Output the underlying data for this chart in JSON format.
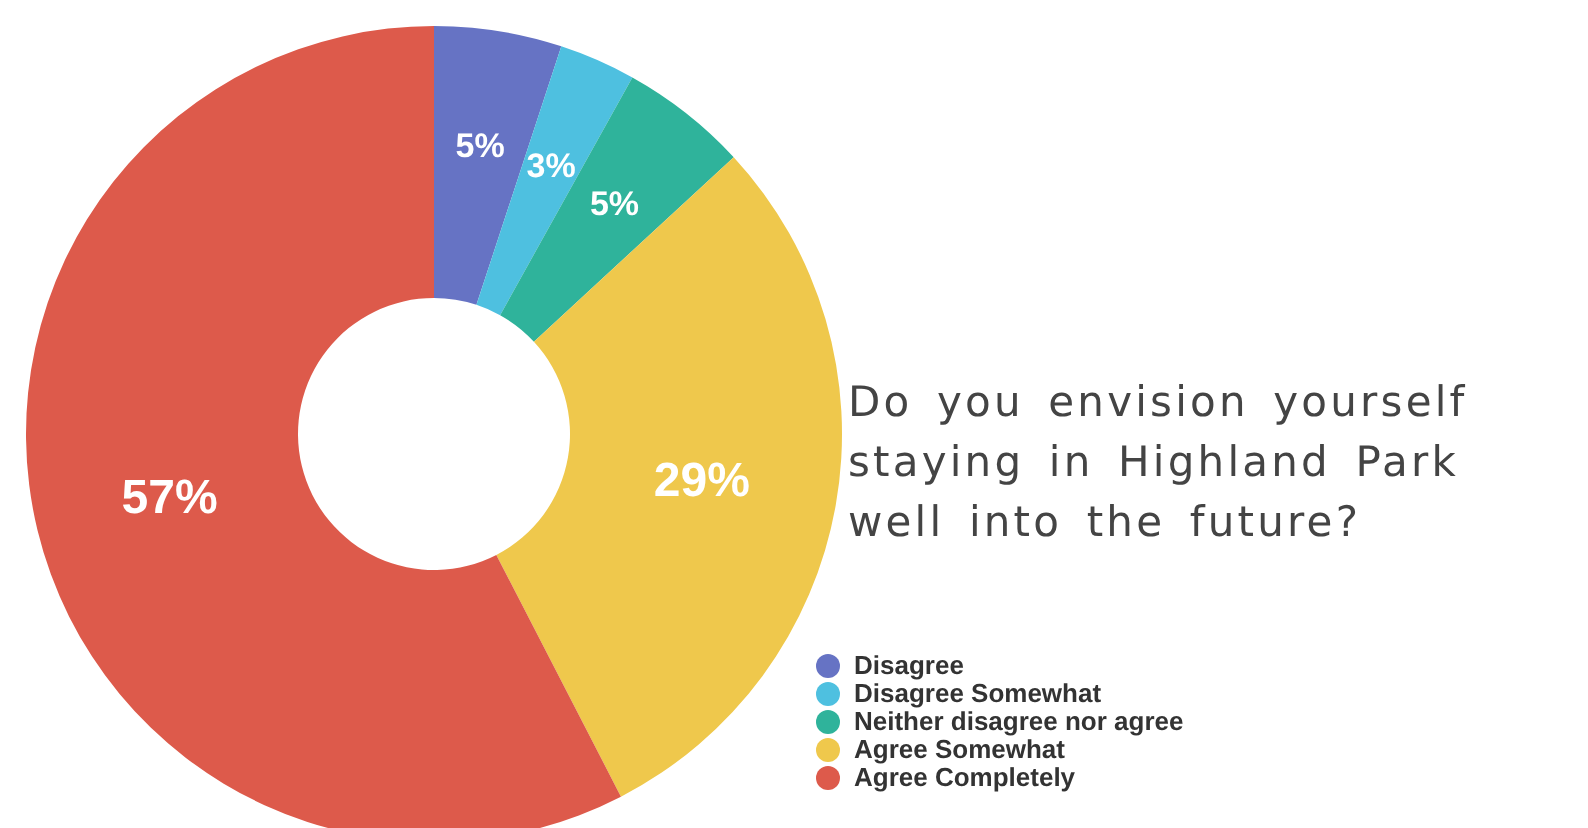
{
  "chart_data": {
    "type": "donut",
    "title": "Do you envision yourself staying in Highland Park well into the future?",
    "categories": [
      "Disagree",
      "Disagree Somewhat",
      "Neither disagree nor agree",
      "Agree Somewhat",
      "Agree Completely"
    ],
    "values": [
      5,
      3,
      5,
      29,
      57
    ],
    "value_labels": [
      "5%",
      "3%",
      "5%",
      "29%",
      "57%"
    ],
    "colors": [
      "#6673c4",
      "#4ec0e0",
      "#2fb39b",
      "#efc84c",
      "#dd5a4b"
    ],
    "legend": "bottom right"
  }
}
